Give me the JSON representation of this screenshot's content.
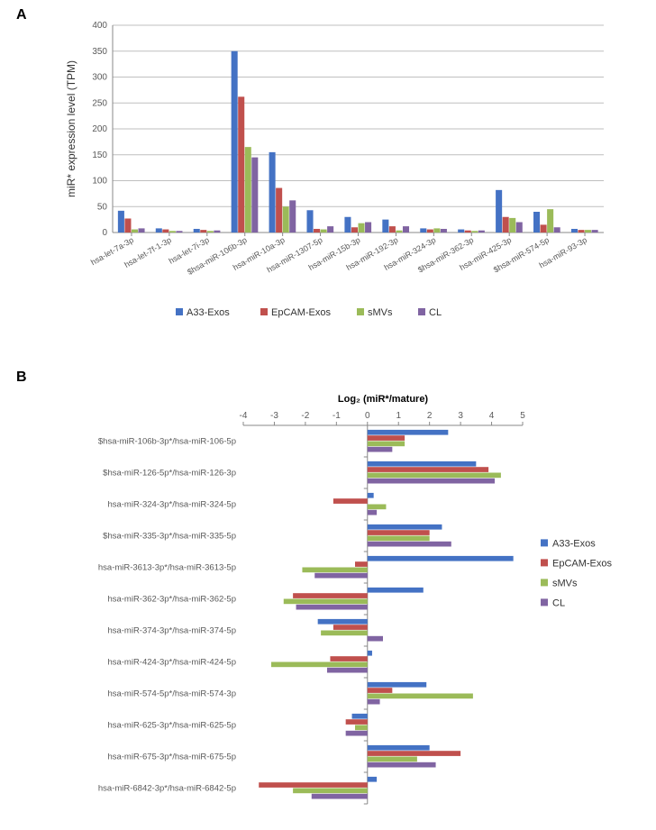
{
  "panelA": {
    "label": "A",
    "type": "bar",
    "y_axis_title": "miR* expression  level (TPM)",
    "ylim": [
      0,
      400
    ],
    "ytick_step": 50,
    "background_color": "#ffffff",
    "grid_color": "#bfbfbf",
    "axis_color": "#888888",
    "series": [
      {
        "name": "A33-Exos",
        "color": "#4472c4"
      },
      {
        "name": "EpCAM-Exos",
        "color": "#c0504d"
      },
      {
        "name": "sMVs",
        "color": "#9bbb59"
      },
      {
        "name": "CL",
        "color": "#8064a2"
      }
    ],
    "categories": [
      {
        "label": "hsa-let-7a-3p",
        "values": [
          42,
          27,
          6,
          8
        ]
      },
      {
        "label": "hsa-let-7f-1-3p",
        "values": [
          8,
          6,
          3,
          3
        ]
      },
      {
        "label": "hsa-let-7i-3p",
        "values": [
          7,
          5,
          3,
          4
        ]
      },
      {
        "label": "$hsa-miR-106b-3p",
        "values": [
          350,
          262,
          165,
          145
        ]
      },
      {
        "label": "hsa-miR-10a-3p",
        "values": [
          155,
          86,
          50,
          62
        ]
      },
      {
        "label": "hsa-miR-1307-5p",
        "values": [
          43,
          7,
          6,
          12
        ]
      },
      {
        "label": "hsa-miR-15b-3p",
        "values": [
          30,
          10,
          18,
          20
        ]
      },
      {
        "label": "hsa-miR-192-3p",
        "values": [
          25,
          12,
          4,
          12
        ]
      },
      {
        "label": "hsa-miR-324-3p",
        "values": [
          8,
          6,
          8,
          7
        ]
      },
      {
        "label": "$hsa-miR-362-3p",
        "values": [
          6,
          4,
          3,
          4
        ]
      },
      {
        "label": "hsa-miR-425-3p",
        "values": [
          82,
          30,
          28,
          20
        ]
      },
      {
        "label": "$hsa-miR-574-5p",
        "values": [
          40,
          15,
          45,
          10
        ]
      },
      {
        "label": "hsa-miR-93-3p",
        "values": [
          7,
          5,
          5,
          5
        ]
      }
    ],
    "bar_group_width": 0.72,
    "label_fontsize": 12,
    "tick_fontsize": 10
  },
  "panelB": {
    "label": "B",
    "type": "bar-horizontal",
    "x_axis_title": "Log₂ (miR*/mature)",
    "xlim": [
      -4,
      5
    ],
    "xtick_step": 1,
    "background_color": "#ffffff",
    "axis_color": "#888888",
    "series": [
      {
        "name": "A33-Exos",
        "color": "#4472c4"
      },
      {
        "name": "EpCAM-Exos",
        "color": "#c0504d"
      },
      {
        "name": "sMVs",
        "color": "#9bbb59"
      },
      {
        "name": "CL",
        "color": "#8064a2"
      }
    ],
    "categories": [
      {
        "label": "$hsa-miR-106b-3p*/hsa-miR-106-5p",
        "values": [
          2.6,
          1.2,
          1.2,
          0.8
        ]
      },
      {
        "label": "$hsa-miR-126-5p*/hsa-miR-126-3p",
        "values": [
          3.5,
          3.9,
          4.3,
          4.1
        ]
      },
      {
        "label": "hsa-miR-324-3p*/hsa-miR-324-5p",
        "values": [
          0.2,
          -1.1,
          0.6,
          0.3
        ]
      },
      {
        "label": "$hsa-miR-335-3p*/hsa-miR-335-5p",
        "values": [
          2.4,
          2.0,
          2.0,
          2.7
        ]
      },
      {
        "label": "hsa-miR-3613-3p*/hsa-miR-3613-5p",
        "values": [
          4.7,
          -0.4,
          -2.1,
          -1.7
        ]
      },
      {
        "label": "hsa-miR-362-3p*/hsa-miR-362-5p",
        "values": [
          1.8,
          -2.4,
          -2.7,
          -2.3
        ]
      },
      {
        "label": "hsa-miR-374-3p*/hsa-miR-374-5p",
        "values": [
          -1.6,
          -1.1,
          -1.5,
          0.5
        ]
      },
      {
        "label": "hsa-miR-424-3p*/hsa-miR-424-5p",
        "values": [
          0.15,
          -1.2,
          -3.1,
          -1.3
        ]
      },
      {
        "label": "hsa-miR-574-5p*/hsa-miR-574-3p",
        "values": [
          1.9,
          0.8,
          3.4,
          0.4
        ]
      },
      {
        "label": "hsa-miR-625-3p*/hsa-miR-625-5p",
        "values": [
          -0.5,
          -0.7,
          -0.4,
          -0.7
        ]
      },
      {
        "label": "hsa-miR-675-3p*/hsa-miR-675-5p",
        "values": [
          2.0,
          3.0,
          1.6,
          2.2
        ]
      },
      {
        "label": "hsa-miR-6842-3p*/hsa-miR-6842-5p",
        "values": [
          0.3,
          -3.5,
          -2.4,
          -1.8
        ]
      }
    ],
    "bar_group_height": 0.72,
    "label_fontsize": 11,
    "tick_fontsize": 10
  }
}
